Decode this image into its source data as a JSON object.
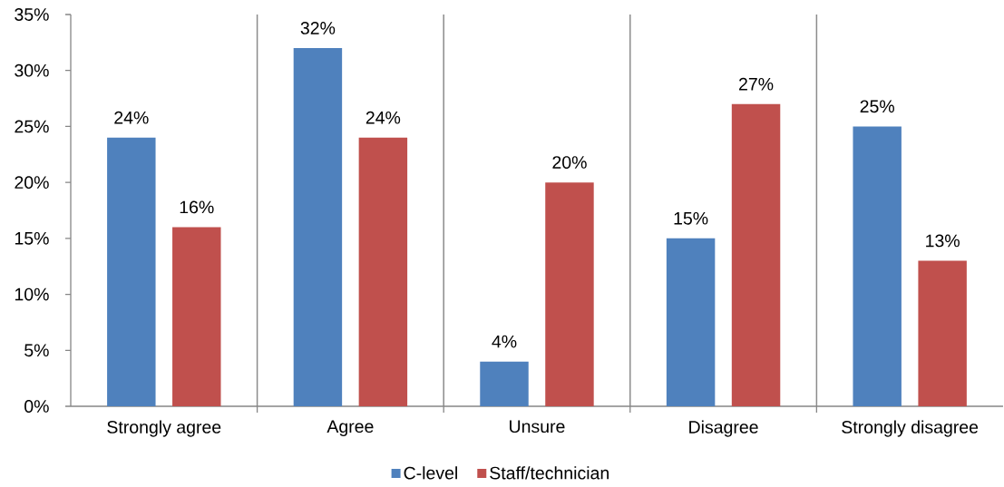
{
  "chart_data": {
    "type": "bar",
    "categories": [
      "Strongly agree",
      "Agree",
      "Unsure",
      "Disagree",
      "Strongly disagree"
    ],
    "series": [
      {
        "name": "C-level",
        "color": "#4f81bd",
        "values": [
          24,
          32,
          4,
          15,
          25
        ],
        "value_labels": [
          "24%",
          "32%",
          "4%",
          "15%",
          "25%"
        ]
      },
      {
        "name": "Staff/technician",
        "color": "#c0504d",
        "values": [
          16,
          24,
          20,
          27,
          13
        ],
        "value_labels": [
          "16%",
          "24%",
          "20%",
          "27%",
          "13%"
        ]
      }
    ],
    "ylim": [
      0,
      35
    ],
    "yticks": [
      {
        "value": 0,
        "label": "0%"
      },
      {
        "value": 5,
        "label": "5%"
      },
      {
        "value": 10,
        "label": "10%"
      },
      {
        "value": 15,
        "label": "15%"
      },
      {
        "value": 20,
        "label": "20%"
      },
      {
        "value": 25,
        "label": "25%"
      },
      {
        "value": 30,
        "label": "30%"
      },
      {
        "value": 35,
        "label": "35%"
      }
    ],
    "grid": "x",
    "legend": "bottom"
  }
}
